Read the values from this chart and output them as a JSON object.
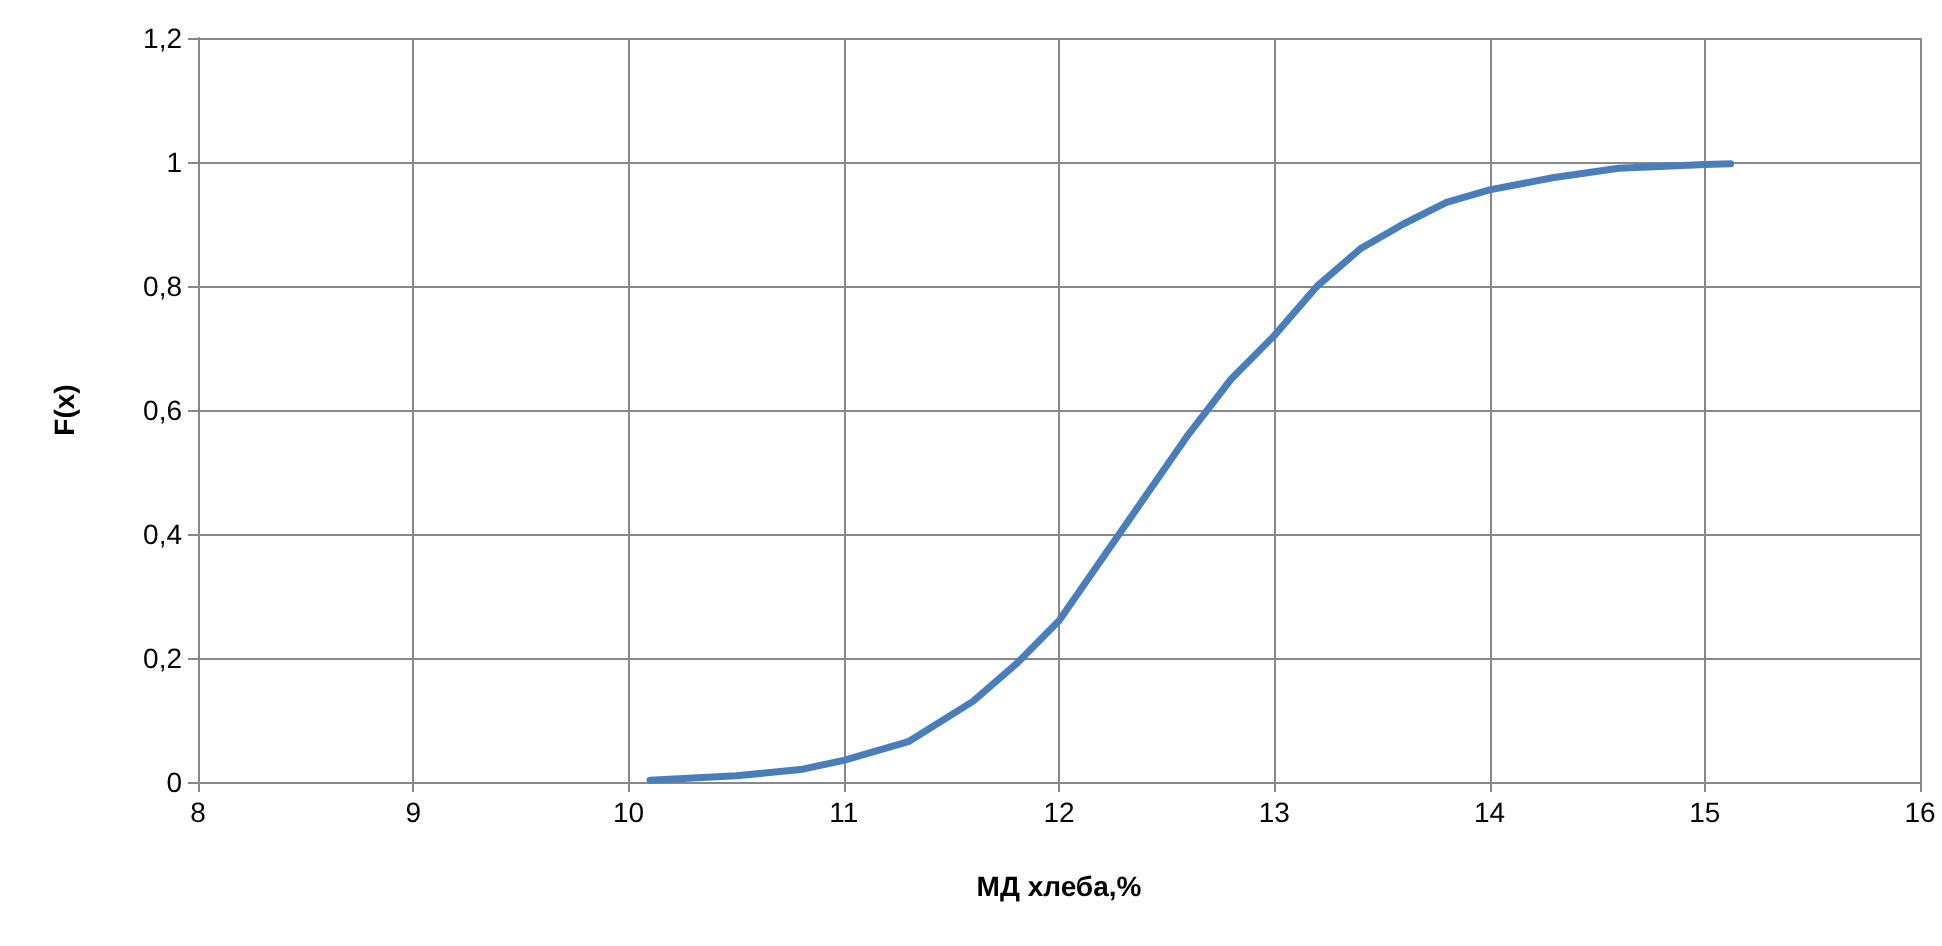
{
  "chart_data": {
    "type": "line",
    "xlabel": "МД хлеба,%",
    "ylabel": "F(x)",
    "x": [
      10.1,
      10.5,
      10.8,
      11,
      11.3,
      11.6,
      11.8,
      12,
      12.2,
      12.4,
      12.6,
      12.8,
      13,
      13.2,
      13.4,
      13.6,
      13.8,
      14,
      14.3,
      14.6,
      15,
      15.12
    ],
    "series": [
      {
        "color": "#4a7ebb",
        "values": [
          0.003,
          0.01,
          0.02,
          0.035,
          0.065,
          0.13,
          0.19,
          0.26,
          0.36,
          0.46,
          0.56,
          0.65,
          0.72,
          0.8,
          0.86,
          0.9,
          0.935,
          0.955,
          0.975,
          0.99,
          0.996,
          0.997
        ]
      }
    ],
    "xlim": [
      8,
      16
    ],
    "xticks": [
      8,
      9,
      10,
      11,
      12,
      13,
      14,
      15,
      16
    ],
    "ylim": [
      0,
      1.2
    ],
    "yticks": [
      0,
      {
        "value": 0.2,
        "label": "0,2"
      },
      {
        "value": 0.4,
        "label": "0,4"
      },
      {
        "value": 0.6,
        "label": "0,6"
      },
      {
        "value": 0.8,
        "label": "0,8"
      },
      1,
      {
        "value": 1.2,
        "label": "1,2"
      }
    ],
    "grid": true,
    "marker": "none",
    "line_style": "solid"
  }
}
